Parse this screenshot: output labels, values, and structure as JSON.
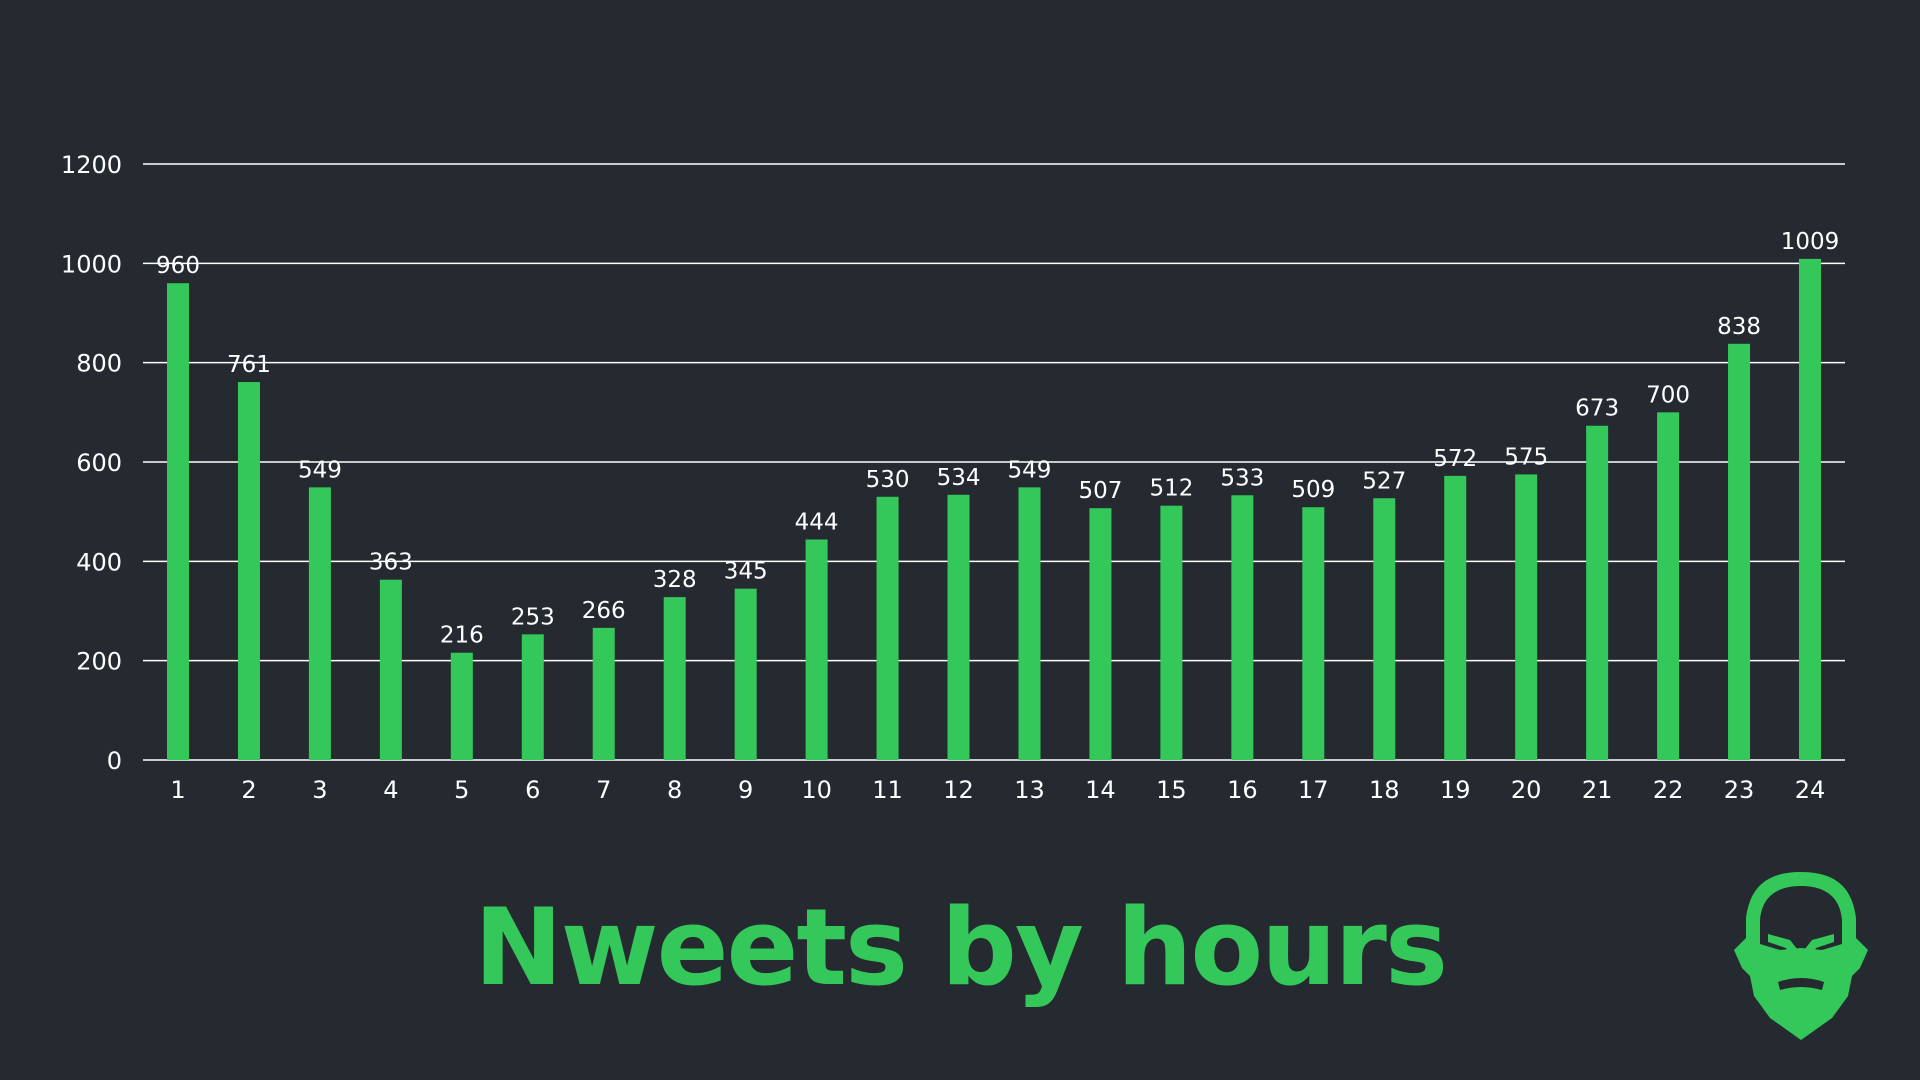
{
  "colors": {
    "background": "#252a31",
    "bar": "#34c85a",
    "text": "#ffffff",
    "grid": "#ffffff",
    "title": "#34c85a"
  },
  "title": "Nweets by hours",
  "logo": {
    "icon": "bearded-face-logo-icon"
  },
  "chart_data": {
    "type": "bar",
    "title": "",
    "xlabel": "",
    "ylabel": "",
    "categories": [
      "1",
      "2",
      "3",
      "4",
      "5",
      "6",
      "7",
      "8",
      "9",
      "10",
      "11",
      "12",
      "13",
      "14",
      "15",
      "16",
      "17",
      "18",
      "19",
      "20",
      "21",
      "22",
      "23",
      "24"
    ],
    "values": [
      960,
      761,
      549,
      363,
      216,
      253,
      266,
      328,
      345,
      444,
      530,
      534,
      549,
      507,
      512,
      533,
      509,
      527,
      572,
      575,
      673,
      700,
      838,
      1009
    ],
    "ylim": [
      0,
      1200
    ],
    "yticks": [
      0,
      200,
      400,
      600,
      800,
      1000,
      1200
    ],
    "grid": true,
    "legend": "none",
    "data_labels": true
  }
}
